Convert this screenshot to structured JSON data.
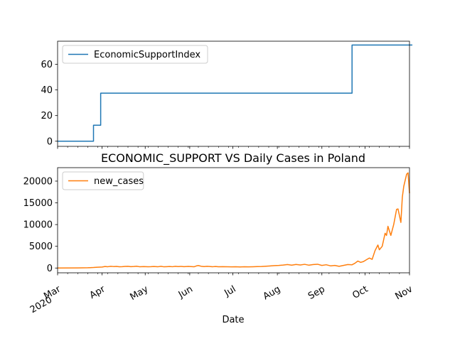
{
  "chart_data": [
    {
      "type": "line",
      "title": "",
      "xlabel": "",
      "ylabel": "",
      "ylim": [
        -4,
        78
      ],
      "yticks": [
        0,
        20,
        40,
        60
      ],
      "legend": "top-left",
      "grid": false,
      "series": [
        {
          "name": "EconomicSupportIndex",
          "color": "#1f77b4",
          "points": [
            [
              "2020-03-01",
              0
            ],
            [
              "2020-03-26",
              0
            ],
            [
              "2020-03-26",
              12.5
            ],
            [
              "2020-03-31",
              12.5
            ],
            [
              "2020-03-31",
              37.5
            ],
            [
              "2020-09-22",
              37.5
            ],
            [
              "2020-09-22",
              75
            ],
            [
              "2020-11-03",
              75
            ]
          ]
        }
      ]
    },
    {
      "type": "line",
      "title": "ECONOMIC_SUPPORT VS Daily Cases in Poland",
      "xlabel": "Date",
      "ylabel": "",
      "ylim": [
        -1100,
        23100
      ],
      "yticks": [
        0,
        5000,
        10000,
        15000,
        20000
      ],
      "legend": "top-left",
      "grid": false,
      "series": [
        {
          "name": "new_cases",
          "color": "#ff7f0e",
          "points": [
            [
              "2020-03-01",
              0
            ],
            [
              "2020-03-15",
              20
            ],
            [
              "2020-03-22",
              60
            ],
            [
              "2020-03-26",
              120
            ],
            [
              "2020-03-29",
              190
            ],
            [
              "2020-04-01",
              230
            ],
            [
              "2020-04-03",
              350
            ],
            [
              "2020-04-05",
              300
            ],
            [
              "2020-04-07",
              400
            ],
            [
              "2020-04-09",
              340
            ],
            [
              "2020-04-11",
              380
            ],
            [
              "2020-04-13",
              290
            ],
            [
              "2020-04-15",
              320
            ],
            [
              "2020-04-17",
              370
            ],
            [
              "2020-04-19",
              400
            ],
            [
              "2020-04-21",
              310
            ],
            [
              "2020-04-23",
              350
            ],
            [
              "2020-04-25",
              420
            ],
            [
              "2020-04-27",
              300
            ],
            [
              "2020-04-30",
              330
            ],
            [
              "2020-05-03",
              290
            ],
            [
              "2020-05-05",
              310
            ],
            [
              "2020-05-07",
              360
            ],
            [
              "2020-05-10",
              300
            ],
            [
              "2020-05-12",
              400
            ],
            [
              "2020-05-14",
              280
            ],
            [
              "2020-05-16",
              320
            ],
            [
              "2020-05-18",
              360
            ],
            [
              "2020-05-20",
              300
            ],
            [
              "2020-05-22",
              400
            ],
            [
              "2020-05-24",
              330
            ],
            [
              "2020-05-26",
              370
            ],
            [
              "2020-05-28",
              320
            ],
            [
              "2020-05-31",
              380
            ],
            [
              "2020-06-02",
              330
            ],
            [
              "2020-06-04",
              280
            ],
            [
              "2020-06-06",
              520
            ],
            [
              "2020-06-07",
              580
            ],
            [
              "2020-06-09",
              400
            ],
            [
              "2020-06-11",
              330
            ],
            [
              "2020-06-13",
              400
            ],
            [
              "2020-06-15",
              350
            ],
            [
              "2020-06-17",
              300
            ],
            [
              "2020-06-19",
              360
            ],
            [
              "2020-06-21",
              290
            ],
            [
              "2020-06-24",
              320
            ],
            [
              "2020-06-27",
              280
            ],
            [
              "2020-06-30",
              260
            ],
            [
              "2020-07-03",
              300
            ],
            [
              "2020-07-06",
              250
            ],
            [
              "2020-07-09",
              280
            ],
            [
              "2020-07-12",
              260
            ],
            [
              "2020-07-15",
              300
            ],
            [
              "2020-07-18",
              330
            ],
            [
              "2020-07-21",
              350
            ],
            [
              "2020-07-24",
              420
            ],
            [
              "2020-07-27",
              480
            ],
            [
              "2020-07-30",
              560
            ],
            [
              "2020-08-02",
              600
            ],
            [
              "2020-08-05",
              680
            ],
            [
              "2020-08-08",
              800
            ],
            [
              "2020-08-11",
              650
            ],
            [
              "2020-08-14",
              820
            ],
            [
              "2020-08-17",
              700
            ],
            [
              "2020-08-20",
              850
            ],
            [
              "2020-08-23",
              650
            ],
            [
              "2020-08-26",
              800
            ],
            [
              "2020-08-29",
              870
            ],
            [
              "2020-09-01",
              600
            ],
            [
              "2020-09-04",
              750
            ],
            [
              "2020-09-07",
              500
            ],
            [
              "2020-09-10",
              600
            ],
            [
              "2020-09-13",
              400
            ],
            [
              "2020-09-16",
              600
            ],
            [
              "2020-09-19",
              800
            ],
            [
              "2020-09-22",
              750
            ],
            [
              "2020-09-24",
              1100
            ],
            [
              "2020-09-26",
              1600
            ],
            [
              "2020-09-28",
              1300
            ],
            [
              "2020-09-30",
              1500
            ],
            [
              "2020-10-02",
              1900
            ],
            [
              "2020-10-04",
              2300
            ],
            [
              "2020-10-06",
              2000
            ],
            [
              "2020-10-08",
              4000
            ],
            [
              "2020-10-10",
              5300
            ],
            [
              "2020-10-11",
              4200
            ],
            [
              "2020-10-13",
              5000
            ],
            [
              "2020-10-15",
              8000
            ],
            [
              "2020-10-16",
              7500
            ],
            [
              "2020-10-17",
              9600
            ],
            [
              "2020-10-19",
              7500
            ],
            [
              "2020-10-21",
              10000
            ],
            [
              "2020-10-23",
              13500
            ],
            [
              "2020-10-24",
              13600
            ],
            [
              "2020-10-26",
              10500
            ],
            [
              "2020-10-27",
              16300
            ],
            [
              "2020-10-28",
              18800
            ],
            [
              "2020-10-30",
              21600
            ],
            [
              "2020-10-31",
              21900
            ],
            [
              "2020-11-01",
              17200
            ]
          ]
        }
      ]
    }
  ],
  "x_axis": {
    "range": [
      "2020-03-01",
      "2020-11-01"
    ],
    "ticks": [
      {
        "date": "2020-03-01",
        "label": "Mar",
        "sublabel": "2020"
      },
      {
        "date": "2020-04-01",
        "label": "Apr"
      },
      {
        "date": "2020-05-01",
        "label": "May"
      },
      {
        "date": "2020-06-01",
        "label": "Jun"
      },
      {
        "date": "2020-07-01",
        "label": "Jul"
      },
      {
        "date": "2020-08-01",
        "label": "Aug"
      },
      {
        "date": "2020-09-01",
        "label": "Sep"
      },
      {
        "date": "2020-10-01",
        "label": "Oct"
      },
      {
        "date": "2020-11-01",
        "label": "Nov"
      }
    ]
  }
}
